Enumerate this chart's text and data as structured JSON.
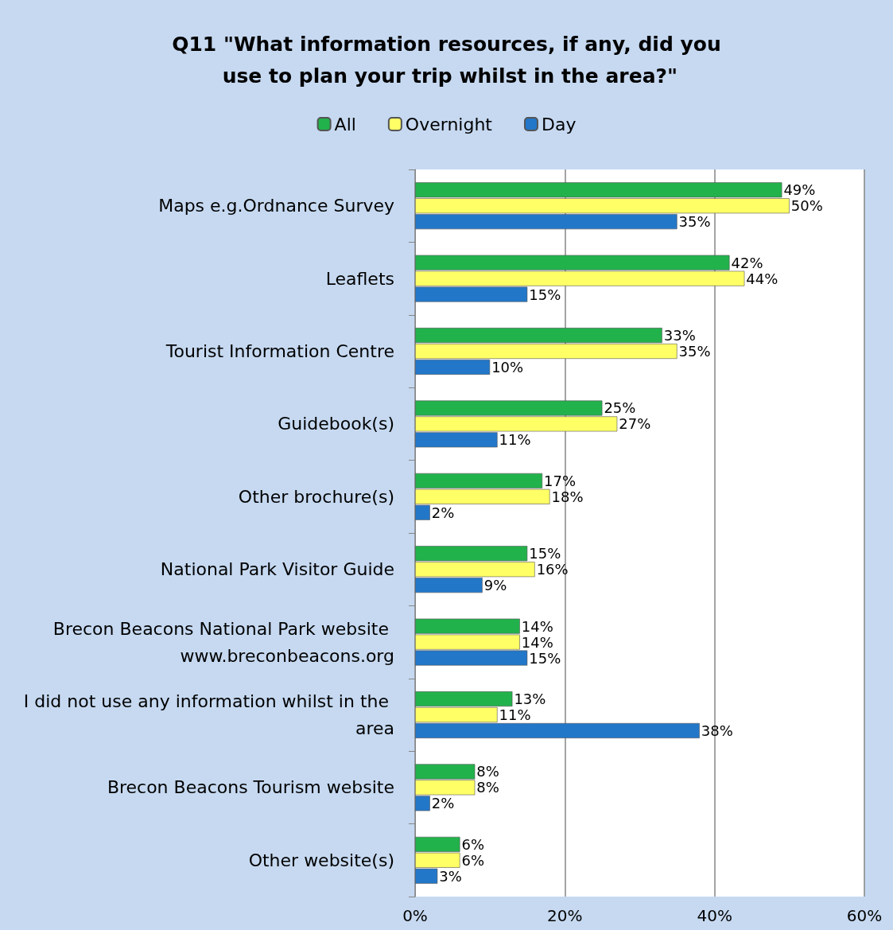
{
  "chart_data": {
    "type": "bar",
    "orientation": "horizontal",
    "title": "Q11 \"What information resources, if any, did you use to plan your trip whilst in the area?\"",
    "categories": [
      "Maps e.g.Ordnance Survey",
      "Leaflets",
      "Tourist Information Centre",
      "Guidebook(s)",
      "Other brochure(s)",
      "National Park Visitor Guide",
      "Brecon Beacons National Park website www.breconbeacons.org",
      "I did not use any information whilst in the area",
      "Brecon Beacons Tourism website",
      "Other website(s)"
    ],
    "series": [
      {
        "name": "All",
        "color": "#22b24c",
        "values": [
          49,
          42,
          33,
          25,
          17,
          15,
          14,
          13,
          8,
          6
        ],
        "value_labels": [
          "49%",
          "42%",
          "33%",
          "25%",
          "17%",
          "15%",
          "14%",
          "13%",
          "8%",
          "6%"
        ]
      },
      {
        "name": "Overnight",
        "color": "#ffff66",
        "values": [
          50,
          44,
          35,
          27,
          18,
          16,
          14,
          11,
          8,
          6
        ],
        "value_labels": [
          "50%",
          "44%",
          "35%",
          "27%",
          "18%",
          "16%",
          "14%",
          "11%",
          "8%",
          "6%"
        ]
      },
      {
        "name": "Day",
        "color": "#2277c9",
        "values": [
          35,
          15,
          10,
          11,
          2,
          9,
          15,
          38,
          2,
          3
        ],
        "value_labels": [
          "35%",
          "15%",
          "10%",
          "11%",
          "2%",
          "9%",
          "15%",
          "38%",
          "2%",
          "3%"
        ]
      }
    ],
    "xlim": [
      0,
      60
    ],
    "xticks": [
      {
        "value": 0,
        "label": "0%"
      },
      {
        "value": 20,
        "label": "20%"
      },
      {
        "value": 40,
        "label": "40%"
      },
      {
        "value": 60,
        "label": "60%"
      }
    ],
    "grid": "x",
    "legend": "top"
  }
}
